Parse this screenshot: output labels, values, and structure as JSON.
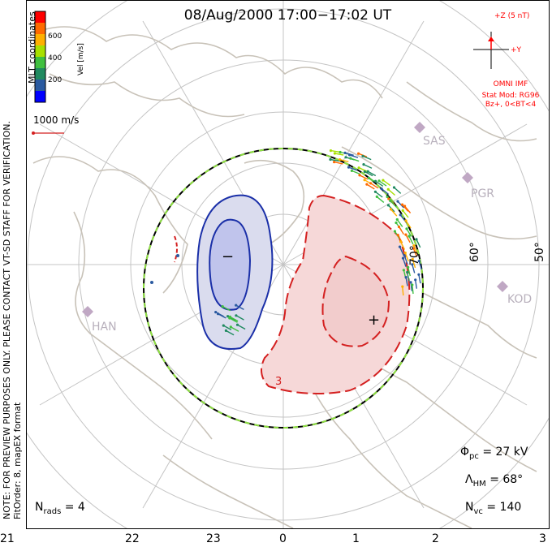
{
  "title": "08/Aug/2000 17:00−17:02 UT",
  "side_note": {
    "line1": "NOTE: FOR PREVIEW PURPOSES ONLY. PLEASE CONTACT VT-SD STAFF FOR VERIFICATION.",
    "line2": "FitOrder: 8, mapEX format"
  },
  "coord_label": "MLT coordinates",
  "legend": {
    "axis_label": "Vel [m/s]",
    "ticks": [
      "600",
      "400",
      "200"
    ],
    "colors": [
      "#ff0000",
      "#ff6a00",
      "#ffb000",
      "#a8e000",
      "#40c040",
      "#208a60",
      "#2a5aa0",
      "#0000ff"
    ]
  },
  "vector_scale": "1000 m/s",
  "imf": {
    "z_label": "+Z (5 nT)",
    "y_label": "+Y",
    "source": "OMNI IMF",
    "model": "Stat Mod: RG96",
    "condition": "Bz+, 0<BT<4"
  },
  "stations": [
    "SAS",
    "PGR",
    "KOD",
    "HAN"
  ],
  "lat_labels": [
    "70°",
    "60°",
    "50°"
  ],
  "stats": {
    "phi_symbol": "Φ",
    "phi_sub": "pc",
    "phi_value": "= 27 kV",
    "lambda_symbol": "Λ",
    "lambda_sub": "HM",
    "lambda_value": "= 68°",
    "nvc_symbol": "N",
    "nvc_sub": "vc",
    "nvc_value": "= 140",
    "nrads_symbol": "N",
    "nrads_sub": "rads",
    "nrads_value": "= 4"
  },
  "contour_labels": {
    "minus": "−",
    "plus": "+",
    "three": "3"
  },
  "mlt_axis": [
    "21",
    "22",
    "23",
    "0",
    "1",
    "2",
    "3"
  ],
  "colors": {
    "neg_contour": "#1a2fa8",
    "pos_contour": "#d42020",
    "neg_fill": "#c8ccee",
    "pos_fill": "#f6d4d4",
    "grid": "#c4c4c4",
    "coast": "#c8c2b8",
    "station": "#c0a8c4"
  }
}
